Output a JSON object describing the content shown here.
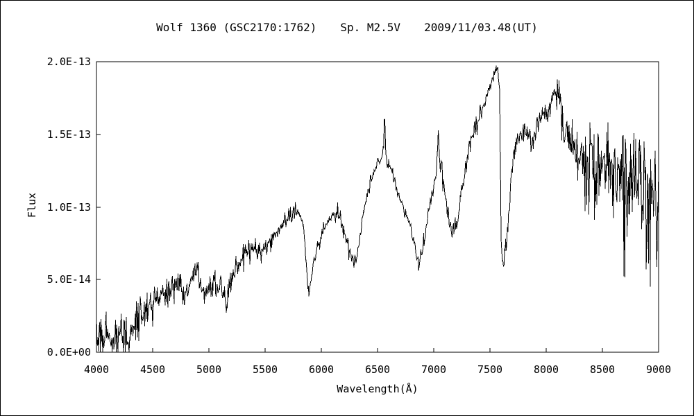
{
  "chart_data": {
    "type": "line",
    "title": {
      "object": "Wolf 1360 (GSC2170:1762)",
      "sp_type": "Sp. M2.5V",
      "date_ut": "2009/11/03.48(UT)"
    },
    "xlabel": "Wavelength(Å)",
    "ylabel": "Flux",
    "xlim": [
      4000,
      9000
    ],
    "ylim_flux": [
      0,
      2e-13
    ],
    "x_ticks": [
      4000,
      4500,
      5000,
      5500,
      6000,
      6500,
      7000,
      7500,
      8000,
      8500,
      9000
    ],
    "y_ticks": [
      {
        "value_1e13": 0.0,
        "label": "0.0E+00"
      },
      {
        "value_1e13": 0.5,
        "label": "5.0E-14"
      },
      {
        "value_1e13": 1.0,
        "label": "1.0E-13"
      },
      {
        "value_1e13": 1.5,
        "label": "1.5E-13"
      },
      {
        "value_1e13": 2.0,
        "label": "2.0E-13"
      }
    ],
    "grid": false,
    "legend": false,
    "line_color": "#000000",
    "background_color": "#ffffff",
    "series": [
      {
        "name": "Wolf 1360 spectrum",
        "units": "flux in 1e-13, wavelength in Angstrom",
        "envelope_wavelength_A": [
          4000,
          4040,
          4080,
          4120,
          4160,
          4200,
          4240,
          4280,
          4330,
          4380,
          4440,
          4500,
          4560,
          4620,
          4680,
          4740,
          4790,
          4840,
          4900,
          4940,
          4990,
          5040,
          5100,
          5150,
          5200,
          5250,
          5300,
          5360,
          5420,
          5470,
          5520,
          5570,
          5620,
          5680,
          5740,
          5800,
          5840,
          5865,
          5885,
          5905,
          5940,
          5980,
          6020,
          6060,
          6110,
          6150,
          6190,
          6240,
          6285,
          6330,
          6380,
          6420,
          6460,
          6500,
          6540,
          6556,
          6563,
          6570,
          6585,
          6620,
          6660,
          6700,
          6740,
          6790,
          6830,
          6865,
          6900,
          6940,
          6980,
          7015,
          7040,
          7060,
          7090,
          7130,
          7170,
          7210,
          7250,
          7300,
          7350,
          7400,
          7450,
          7500,
          7545,
          7570,
          7585,
          7600,
          7612,
          7625,
          7645,
          7675,
          7700,
          7725,
          7760,
          7800,
          7840,
          7880,
          7920,
          7960,
          8000,
          8040,
          8080,
          8110,
          8150,
          8200,
          8250,
          8300,
          8350,
          8400,
          8450,
          8500,
          8550,
          8600,
          8650,
          8700,
          8750,
          8800,
          8850,
          8900,
          8950,
          9000
        ],
        "envelope_flux_1e13": [
          0.08,
          0.12,
          0.1,
          0.13,
          0.1,
          0.12,
          0.1,
          0.12,
          0.15,
          0.22,
          0.27,
          0.31,
          0.36,
          0.42,
          0.45,
          0.44,
          0.35,
          0.5,
          0.55,
          0.42,
          0.45,
          0.47,
          0.45,
          0.35,
          0.46,
          0.58,
          0.65,
          0.69,
          0.73,
          0.71,
          0.75,
          0.8,
          0.85,
          0.9,
          0.93,
          0.96,
          0.88,
          0.6,
          0.39,
          0.5,
          0.66,
          0.76,
          0.86,
          0.9,
          0.94,
          0.95,
          0.88,
          0.72,
          0.6,
          0.7,
          0.98,
          1.12,
          1.22,
          1.3,
          1.35,
          1.45,
          1.7,
          1.45,
          1.3,
          1.27,
          1.16,
          1.05,
          0.98,
          0.88,
          0.75,
          0.59,
          0.7,
          0.92,
          1.05,
          1.2,
          1.53,
          1.3,
          1.15,
          0.9,
          0.86,
          0.88,
          1.1,
          1.38,
          1.5,
          1.6,
          1.7,
          1.84,
          1.93,
          1.96,
          1.8,
          0.8,
          0.56,
          0.62,
          0.75,
          1.05,
          1.3,
          1.45,
          1.5,
          1.48,
          1.5,
          1.47,
          1.55,
          1.62,
          1.6,
          1.7,
          1.8,
          1.79,
          1.5,
          1.45,
          1.38,
          1.33,
          1.3,
          1.32,
          1.28,
          1.3,
          1.26,
          1.22,
          1.2,
          1.18,
          1.22,
          1.15,
          1.12,
          1.12,
          1.08,
          1.02
        ],
        "noise_wavelength_A": [
          4000,
          4300,
          4400,
          4600,
          4900,
          5200,
          5500,
          5800,
          6100,
          6400,
          6560,
          6800,
          7100,
          7300,
          7550,
          7650,
          7800,
          8000,
          8150,
          8300,
          8450,
          8600,
          8750,
          8900,
          9000
        ],
        "noise_amp_1e13": [
          0.085,
          0.085,
          0.065,
          0.055,
          0.05,
          0.045,
          0.04,
          0.035,
          0.035,
          0.03,
          0.02,
          0.03,
          0.04,
          0.035,
          0.025,
          0.04,
          0.04,
          0.045,
          0.07,
          0.1,
          0.13,
          0.17,
          0.2,
          0.22,
          0.22
        ]
      }
    ]
  }
}
